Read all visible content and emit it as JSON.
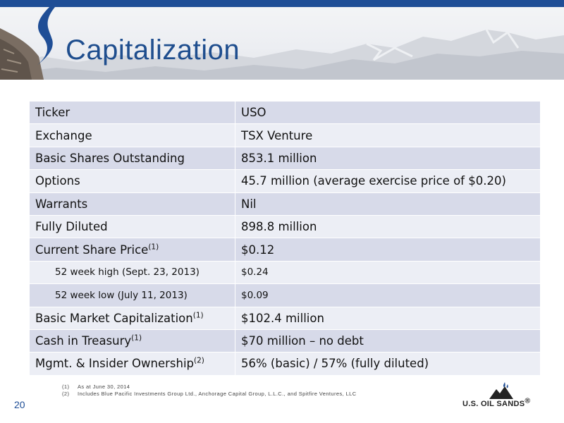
{
  "slide": {
    "title": "Capitalization",
    "page_number": "20"
  },
  "table": {
    "rows": [
      {
        "label": "Ticker",
        "note": "",
        "value": "USO"
      },
      {
        "label": "Exchange",
        "note": "",
        "value": "TSX Venture"
      },
      {
        "label": "Basic Shares Outstanding",
        "note": "",
        "value": "853.1 million"
      },
      {
        "label": "Options",
        "note": "",
        "value": "45.7 million (average exercise price of $0.20)"
      },
      {
        "label": "Warrants",
        "note": "",
        "value": "Nil"
      },
      {
        "label": "Fully Diluted",
        "note": "",
        "value": "898.8 million"
      },
      {
        "label": "Current Share Price",
        "note": "(1)",
        "value": "$0.12"
      },
      {
        "label": "52 week high (Sept. 23, 2013)",
        "note": "",
        "value": "$0.24"
      },
      {
        "label": "52 week low (July 11, 2013)",
        "note": "",
        "value": "$0.09"
      },
      {
        "label": "Basic Market Capitalization",
        "note": "(1)",
        "value": "$102.4 million"
      },
      {
        "label": "Cash in Treasury",
        "note": "(1)",
        "value": "$70 million – no debt"
      },
      {
        "label": "Mgmt. & Insider Ownership",
        "note": "(2)",
        "value": "56% (basic) / 57% (fully diluted)"
      }
    ]
  },
  "footnotes": [
    {
      "num": "(1)",
      "text": "As at June 30, 2014"
    },
    {
      "num": "(2)",
      "text": "Includes Blue Pacific Investments Group Ltd., Anchorage Capital Group, L.L.C., and Spitfire Ventures, LLC"
    }
  ],
  "logo": {
    "text": "U.S. OIL SANDS",
    "mark": "®"
  },
  "colors": {
    "brand_blue": "#1f4e96",
    "row_dark": "#d7dae9",
    "row_light": "#eceef5"
  },
  "icons": {
    "logo_mark": "mountain-drops-icon"
  }
}
